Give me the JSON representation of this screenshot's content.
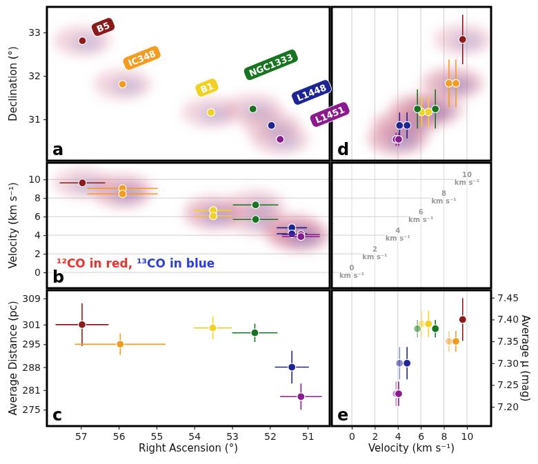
{
  "chart_data": [
    {
      "type": "scatter",
      "title": "a",
      "y_label": "Declination (°)",
      "xlim": [
        57.9,
        50.42
      ],
      "ylim": [
        30.05,
        33.59
      ],
      "yticks": [
        31,
        32,
        33
      ],
      "tick_labels": "y",
      "series": [
        {
          "name": "B5",
          "color": "#8b1a1a",
          "x": [
            56.96
          ],
          "values": [
            32.81
          ]
        },
        {
          "name": "IC348",
          "color": "#f39c1f",
          "x": [
            55.9
          ],
          "values": [
            31.81
          ]
        },
        {
          "name": "B1",
          "color": "#f2d024",
          "x": [
            53.56
          ],
          "values": [
            31.16
          ]
        },
        {
          "name": "NGC1333",
          "color": "#17751f",
          "x": [
            52.45
          ],
          "values": [
            31.24
          ]
        },
        {
          "name": "L1448",
          "color": "#1c2496",
          "x": [
            51.96
          ],
          "values": [
            30.86
          ]
        },
        {
          "name": "L1451",
          "color": "#8a1a8e",
          "x": [
            51.73
          ],
          "values": [
            30.54
          ]
        }
      ]
    },
    {
      "type": "scatter",
      "title": "b",
      "y_label": "Velocity (km s⁻¹)",
      "xlim": [
        57.9,
        50.42
      ],
      "ylim": [
        -1.7,
        11.8
      ],
      "yticks": [
        0,
        2,
        4,
        6,
        8,
        10
      ],
      "grid": "y",
      "tick_labels": "y",
      "annotations": [
        {
          "text": "¹²CO in red,",
          "color": "#e8322b"
        },
        {
          "text": "¹³CO in blue",
          "color": "#2b3fd6"
        }
      ],
      "series": [
        {
          "color": "#8b1a1a",
          "x": [
            56.96
          ],
          "values": [
            9.63
          ],
          "x_error": [
            0.6
          ]
        },
        {
          "color": "#f39c1f",
          "x": [
            55.9,
            55.9
          ],
          "values": [
            9.04,
            8.44
          ],
          "x_error": [
            0.93,
            0.93
          ]
        },
        {
          "color": "#f2d024",
          "x": [
            53.5,
            53.5
          ],
          "values": [
            6.67,
            6.07
          ],
          "x_error": [
            0.5,
            0.5
          ]
        },
        {
          "color": "#17751f",
          "x": [
            52.38,
            52.38
          ],
          "values": [
            7.26,
            5.7
          ],
          "x_error": [
            0.6,
            0.6
          ]
        },
        {
          "color": "#1c2496",
          "x": [
            51.42,
            51.42
          ],
          "values": [
            4.8,
            4.15
          ],
          "x_error": [
            0.4,
            0.4
          ]
        },
        {
          "color": "#8a1a8e",
          "x": [
            51.18,
            51.18
          ],
          "values": [
            4.07,
            3.85
          ],
          "x_error": [
            0.5,
            0.5
          ]
        }
      ]
    },
    {
      "type": "scatter",
      "title": "c",
      "x_label": "Right Ascension (°)",
      "y_label": "Average Distance (pc)",
      "xlim": [
        57.9,
        50.42
      ],
      "xticks": [
        57,
        56,
        55,
        54,
        53,
        52,
        51
      ],
      "ylim": [
        270,
        311.5
      ],
      "yticks": [
        275,
        281,
        288,
        295,
        301,
        309
      ],
      "series": [
        {
          "color": "#8b1a1a",
          "x": [
            56.97
          ],
          "values": [
            301
          ],
          "x_error": [
            0.7
          ],
          "y_error": [
            6.5
          ]
        },
        {
          "color": "#f39c1f",
          "x": [
            55.96
          ],
          "values": [
            295
          ],
          "x_error": [
            1.2
          ],
          "y_error": [
            3.3
          ]
        },
        {
          "color": "#f2d024",
          "x": [
            53.51
          ],
          "values": [
            300
          ],
          "x_error": [
            0.5
          ],
          "y_error": [
            3.5
          ]
        },
        {
          "color": "#17751f",
          "x": [
            52.4
          ],
          "values": [
            298.5
          ],
          "x_error": [
            0.6
          ],
          "y_error": [
            2.8
          ]
        },
        {
          "color": "#1c2496",
          "x": [
            51.42
          ],
          "values": [
            288
          ],
          "x_error": [
            0.45
          ],
          "y_error": [
            5
          ]
        },
        {
          "color": "#8a1a8e",
          "x": [
            51.18
          ],
          "values": [
            279
          ],
          "x_error": [
            0.55
          ],
          "y_error": [
            4
          ]
        }
      ]
    },
    {
      "type": "scatter",
      "title": "d",
      "xlim": [
        -1.74,
        12.1
      ],
      "ylim": [
        30.05,
        33.59
      ],
      "xticks": [
        0,
        2,
        4,
        6,
        8,
        10
      ],
      "grid": "x",
      "tick_labels": false,
      "series": [
        {
          "color": "#8b1a1a",
          "x": [
            9.63
          ],
          "values": [
            32.84
          ],
          "y_error": [
            0.57
          ]
        },
        {
          "color": "#f39c1f",
          "x": [
            8.44,
            9.04
          ],
          "values": [
            31.83,
            31.83
          ],
          "y_error": [
            0.55,
            0.55
          ]
        },
        {
          "color": "#f2d024",
          "x": [
            6.07,
            6.67
          ],
          "values": [
            31.17,
            31.17
          ],
          "y_error": [
            0.35,
            0.35
          ]
        },
        {
          "color": "#17751f",
          "x": [
            5.7,
            7.26
          ],
          "values": [
            31.24,
            31.24
          ],
          "y_error": [
            0.45,
            0.45
          ]
        },
        {
          "color": "#1c2496",
          "x": [
            4.15,
            4.8
          ],
          "values": [
            30.86,
            30.86
          ],
          "y_error": [
            0.3,
            0.3
          ]
        },
        {
          "color": "#8a1a8e",
          "x": [
            3.85,
            4.07
          ],
          "values": [
            30.54,
            30.54
          ],
          "y_error": [
            0.15,
            0.15
          ]
        }
      ]
    },
    {
      "type": "scatter",
      "title": "e",
      "x_label": "Velocity (km s⁻¹)",
      "y_label": "Average μ (mag)",
      "xlim": [
        -1.74,
        12.1
      ],
      "xticks": [
        0,
        2,
        4,
        6,
        8,
        10
      ],
      "ylim": [
        7.156,
        7.467
      ],
      "yticks": [
        {
          "value": 7.2,
          "label": "7.20"
        },
        7.25,
        {
          "value": 7.3,
          "label": "7.30"
        },
        7.35,
        {
          "value": 7.4,
          "label": "7.40"
        },
        7.45
      ],
      "grid": "x",
      "depth_ticks": [
        {
          "value": 0,
          "label": "0 km s⁻¹"
        },
        {
          "value": 2,
          "label": "2 km s⁻¹"
        },
        {
          "value": 4,
          "label": "4 km s⁻¹"
        },
        {
          "value": 6,
          "label": "6 km s⁻¹"
        },
        {
          "value": 8,
          "label": "8 km s⁻¹"
        },
        {
          "value": 10,
          "label": "10 km s⁻¹"
        }
      ],
      "series": [
        {
          "color": "#8b1a1a",
          "x": [
            9.63
          ],
          "values": [
            7.4
          ],
          "y_error": [
            0.049
          ]
        },
        {
          "color": "#f39c1f",
          "x": [
            8.44,
            9.04
          ],
          "values": [
            7.35,
            7.35
          ],
          "y_error": [
            0.024,
            0.024
          ]
        },
        {
          "color": "#f2d024",
          "x": [
            6.07,
            6.67
          ],
          "values": [
            7.39,
            7.39
          ],
          "y_error": [
            0.03,
            0.03
          ]
        },
        {
          "color": "#17751f",
          "x": [
            5.7,
            7.26
          ],
          "values": [
            7.379,
            7.379
          ],
          "y_error": [
            0.02,
            0.02
          ]
        },
        {
          "color": "#1c2496",
          "x": [
            4.15,
            4.8
          ],
          "values": [
            7.3,
            7.3
          ],
          "y_error": [
            0.037,
            0.037
          ]
        },
        {
          "color": "#8a1a8e",
          "x": [
            3.85,
            4.07
          ],
          "values": [
            7.23,
            7.23
          ],
          "y_error": [
            0.028,
            0.028
          ]
        }
      ]
    }
  ]
}
